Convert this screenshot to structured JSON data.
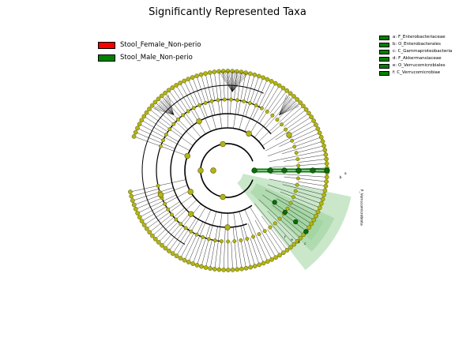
{
  "title": "Significantly Represented Taxa",
  "colors": {
    "female": "#ff0000",
    "male": "#008000",
    "node": "#b2b515",
    "node_stroke": "#555500",
    "male_node": "#0a6e0a",
    "highlight": "#9fd49f"
  },
  "groups": [
    {
      "name": "Stool_Female_Non-perio",
      "color": "#ff0000"
    },
    {
      "name": "Stool_Male_Non-perio",
      "color": "#008000"
    }
  ],
  "taxa_legend": [
    {
      "label": "a: F_Enterobacteriaceae",
      "color": "#008000"
    },
    {
      "label": "b: O_Enterobacterales",
      "color": "#008000"
    },
    {
      "label": "c: C_Gammaproteobacteria",
      "color": "#008000"
    },
    {
      "label": "d: F_Akkermansiaceae",
      "color": "#008000"
    },
    {
      "label": "e: O_Verrucomicrobiales",
      "color": "#008000"
    },
    {
      "label": "f: C_Verrucomicrobiae",
      "color": "#008000"
    }
  ],
  "clade_annotations": {
    "outer_label": "P_Verrucomicrobiota",
    "letters": [
      "a",
      "b",
      "c",
      "d",
      "e",
      "f"
    ]
  }
}
